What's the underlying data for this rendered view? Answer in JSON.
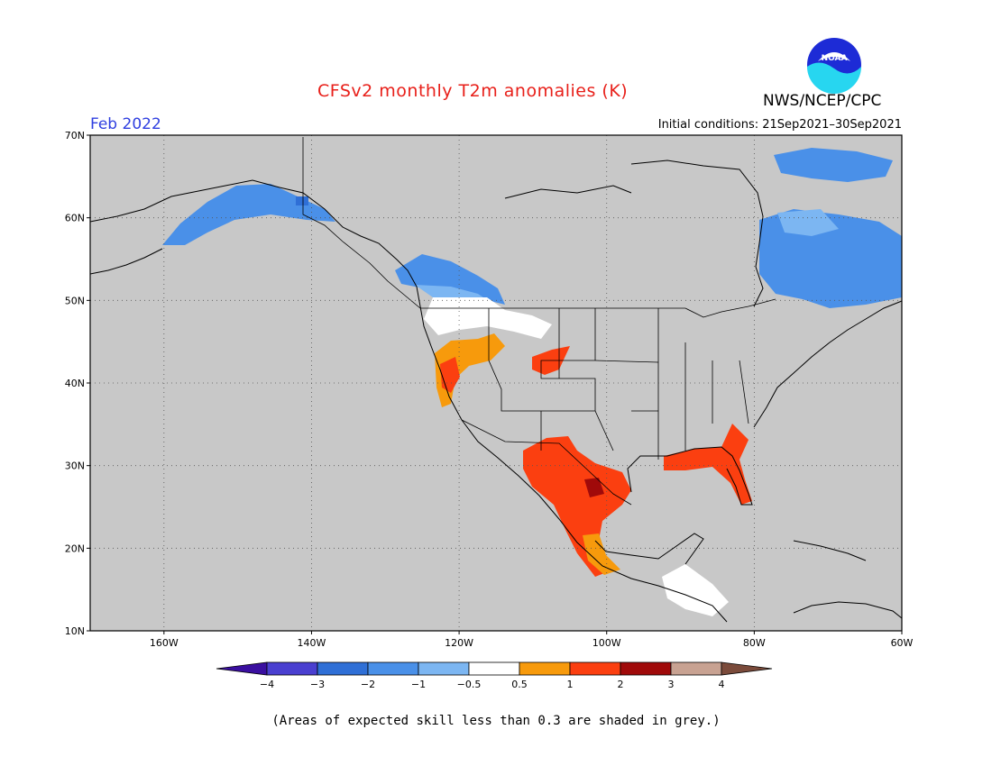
{
  "header": {
    "title": "CFSv2 monthly T2m anomalies (K)",
    "agency": "NWS/NCEP/CPC",
    "logo_text": "NOAA",
    "month": "Feb 2022",
    "initial_conditions": "Initial conditions: 21Sep2021–30Sep2021"
  },
  "map": {
    "lon_range": [
      -170,
      -60
    ],
    "lat_range": [
      10,
      70
    ],
    "lon_ticks": [
      "160W",
      "140W",
      "120W",
      "100W",
      "80W",
      "60W"
    ],
    "lat_ticks": [
      "70N",
      "60N",
      "50N",
      "40N",
      "30N",
      "20N",
      "10N"
    ],
    "background_color": "#c8c8c8",
    "gridlines": true
  },
  "colorbar": {
    "colors": [
      "#3a0fa0",
      "#4a3fd0",
      "#2f6fd6",
      "#4a90e8",
      "#7cb6f2",
      "#ffffff",
      "#f79a0c",
      "#fb3f10",
      "#a00a0a",
      "#c8a292",
      "#7b4b3b"
    ],
    "tick_labels": [
      "−4",
      "−3",
      "−2",
      "−1",
      "−0.5",
      "0.5",
      "1",
      "2",
      "3",
      "4"
    ]
  },
  "anomaly_regions": [
    {
      "region": "Alaska",
      "category": "-1"
    },
    {
      "region": "Eastern Canada / Labrador",
      "category": "-1"
    },
    {
      "region": "Western Canada",
      "category": "-1"
    },
    {
      "region": "Northern Rockies",
      "category": "-0.5 to 0.5"
    },
    {
      "region": "California / Great Basin",
      "category": "0.5 to 2"
    },
    {
      "region": "Texas / Mexico",
      "category": "1 to 3"
    },
    {
      "region": "Gulf Coast / Florida",
      "category": "1 to 2"
    }
  ],
  "footnote": "(Areas of expected skill less than 0.3 are shaded in grey.)"
}
